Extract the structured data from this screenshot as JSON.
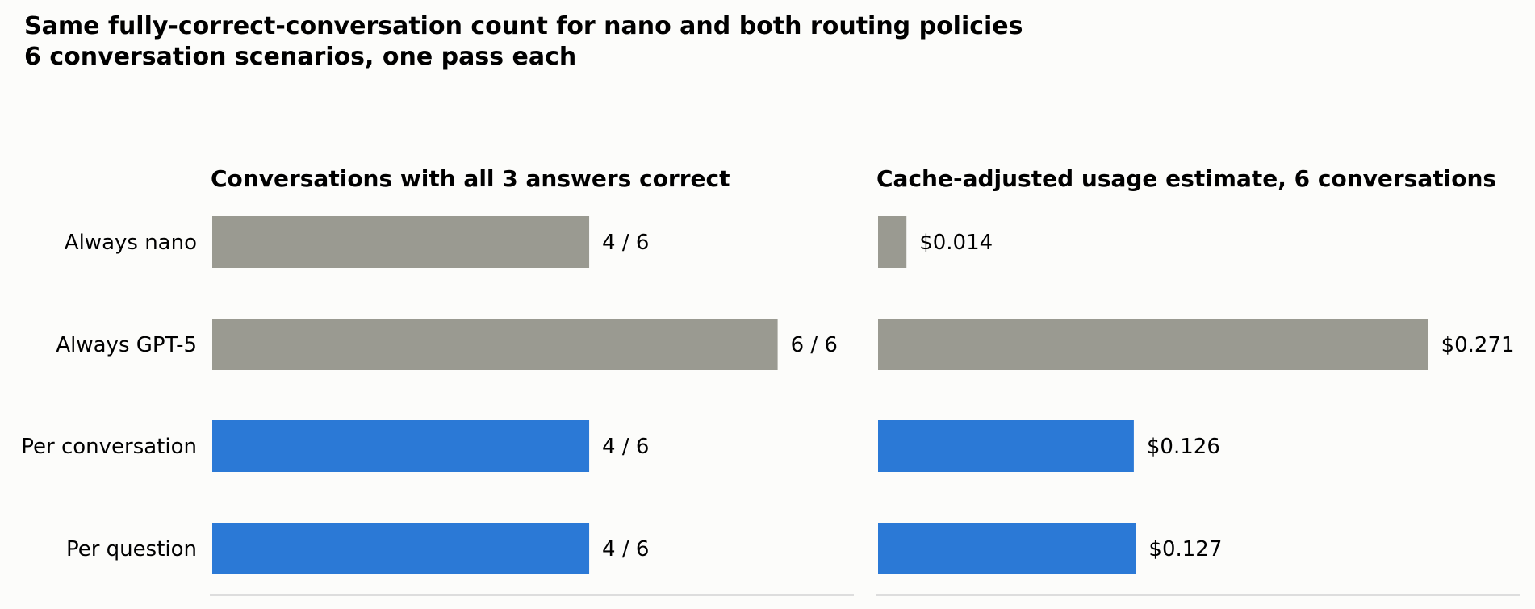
{
  "figure": {
    "title": "Same fully-correct-conversation count for nano and both routing policies",
    "subtitle": "6 conversation scenarios, one pass each"
  },
  "colors": {
    "baseline": "#9a9a91",
    "routing": "#2b79d6",
    "background": "#fcfcfa",
    "axis": "#dddddd"
  },
  "chart_data": [
    {
      "type": "bar",
      "orientation": "horizontal",
      "title": "Conversations with all 3 answers correct",
      "categories": [
        "Always nano",
        "Always GPT-5",
        "Per conversation",
        "Per question"
      ],
      "values": [
        4,
        6,
        4,
        4
      ],
      "value_labels": [
        "4 / 6",
        "6 / 6",
        "4 / 6",
        "4 / 6"
      ],
      "bar_colors": [
        "baseline",
        "baseline",
        "routing",
        "routing"
      ],
      "xlim": [
        0,
        6.8
      ],
      "grid": false
    },
    {
      "type": "bar",
      "orientation": "horizontal",
      "title": "Cache-adjusted usage estimate, 6 conversations",
      "categories": [
        "Always nano",
        "Always GPT-5",
        "Per conversation",
        "Per question"
      ],
      "values": [
        0.014,
        0.271,
        0.126,
        0.127
      ],
      "value_labels": [
        "$0.014",
        "$0.271",
        "$0.126",
        "$0.127"
      ],
      "bar_colors": [
        "baseline",
        "baseline",
        "routing",
        "routing"
      ],
      "xlim": [
        0,
        0.3157
      ],
      "grid": false
    }
  ]
}
